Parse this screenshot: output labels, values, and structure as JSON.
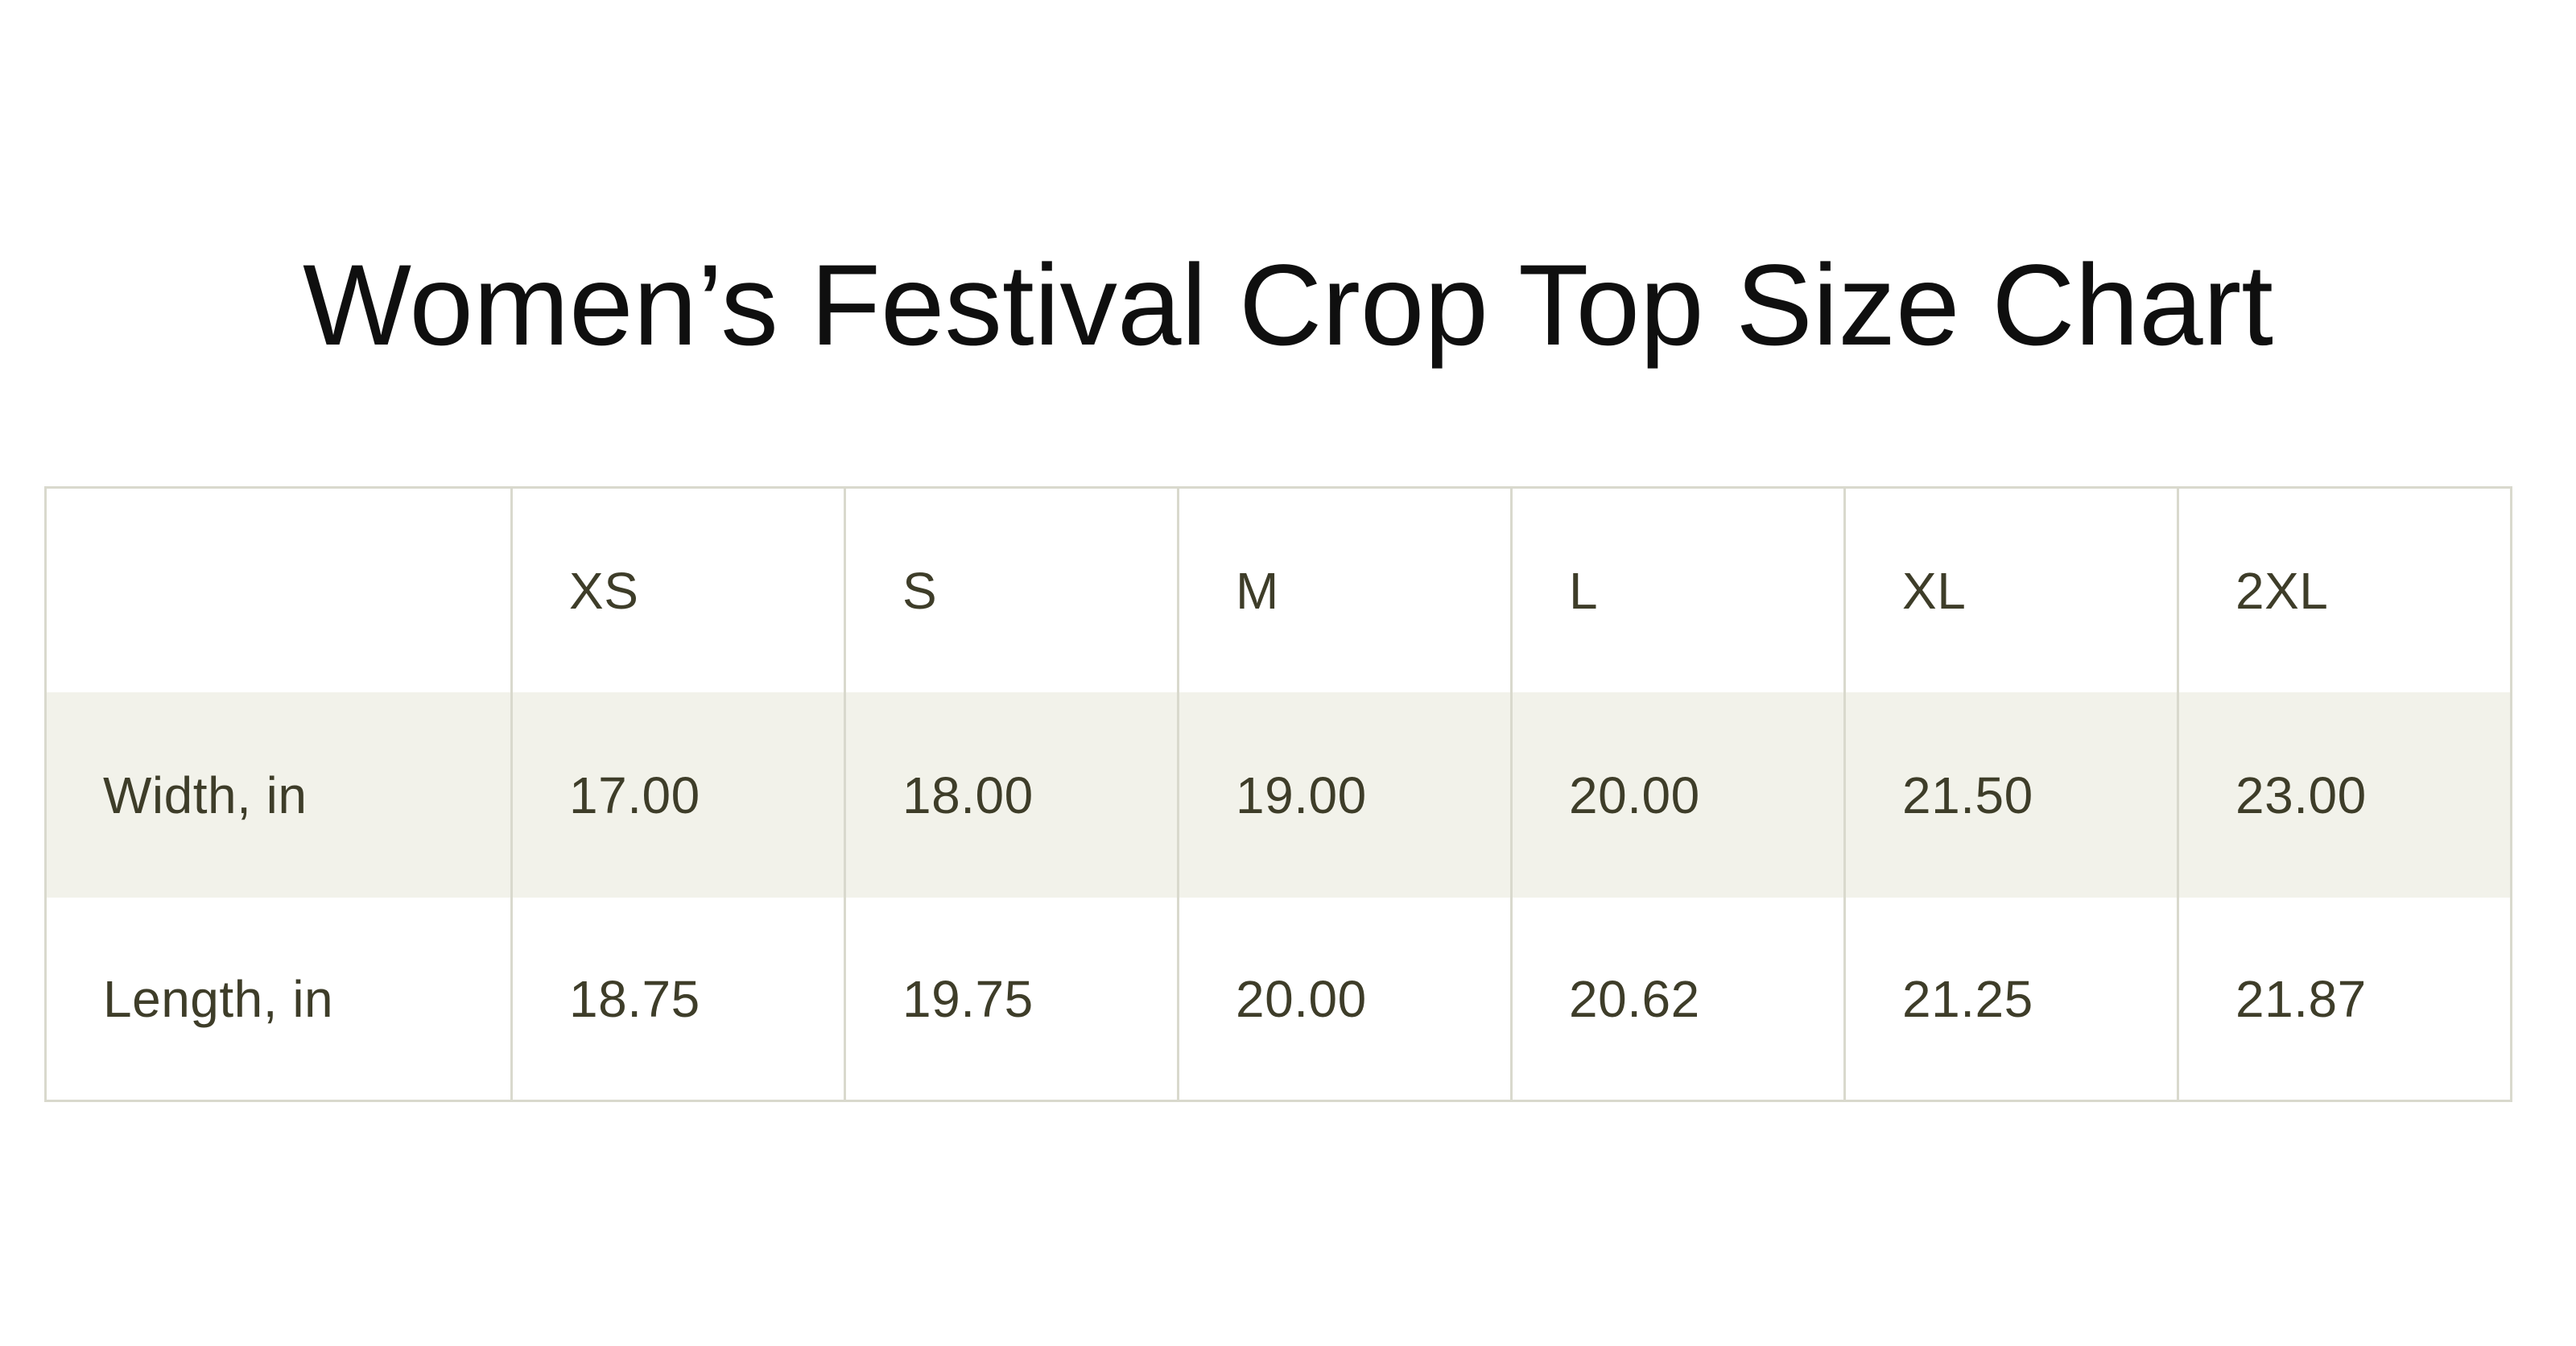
{
  "title": "Women’s Festival Crop Top Size Chart",
  "table": {
    "corner": "",
    "columns": [
      "XS",
      "S",
      "M",
      "L",
      "XL",
      "2XL"
    ],
    "rows": [
      {
        "label": "Width, in",
        "values": [
          "17.00",
          "18.00",
          "19.00",
          "20.00",
          "21.50",
          "23.00"
        ]
      },
      {
        "label": "Length, in",
        "values": [
          "18.75",
          "19.75",
          "20.00",
          "20.62",
          "21.25",
          "21.87"
        ]
      }
    ]
  },
  "chart_data": {
    "type": "table",
    "title": "Women’s Festival Crop Top Size Chart",
    "columns": [
      "XS",
      "S",
      "M",
      "L",
      "XL",
      "2XL"
    ],
    "rows": [
      {
        "label": "Width, in",
        "values": [
          17.0,
          18.0,
          19.0,
          20.0,
          21.5,
          23.0
        ]
      },
      {
        "label": "Length, in",
        "values": [
          18.75,
          19.75,
          20.0,
          20.62,
          21.25,
          21.87
        ]
      }
    ]
  },
  "colors": {
    "page_bg": "#ffffff",
    "title_text": "#0f0f0f",
    "table_text": "#3e3d29",
    "shaded_row_bg": "#f2f2ea",
    "border": "#d9d9cd"
  }
}
